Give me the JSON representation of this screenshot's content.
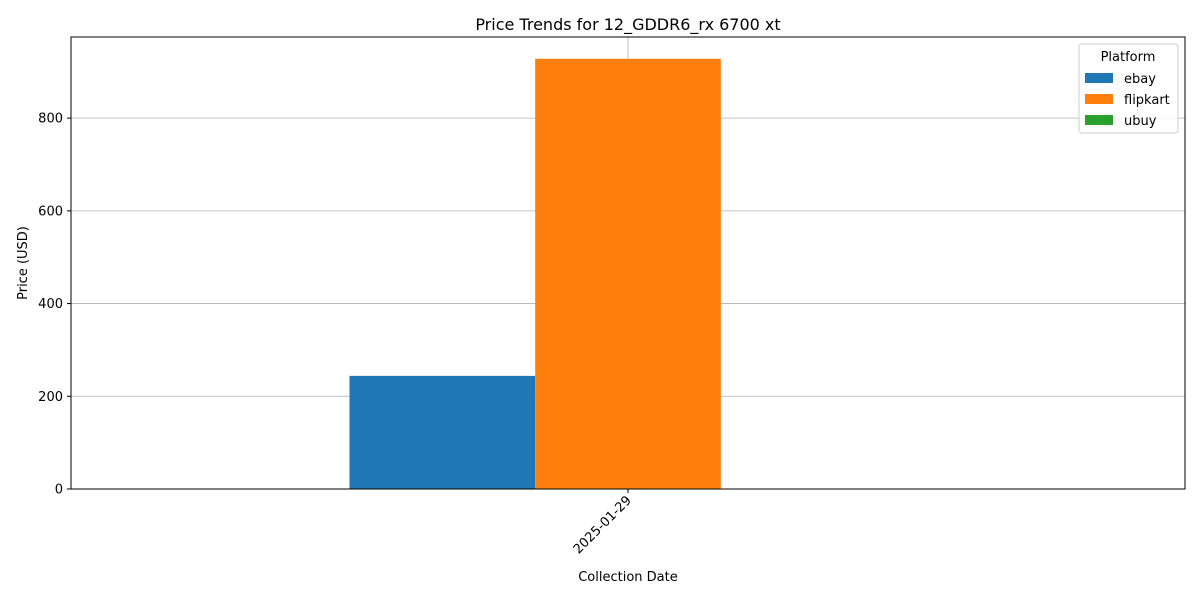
{
  "chart_data": {
    "type": "bar",
    "title": "Price Trends for 12_GDDR6_rx 6700 xt",
    "xlabel": "Collection Date",
    "ylabel": "Price (USD)",
    "categories": [
      "2025-01-29"
    ],
    "series": [
      {
        "name": "ebay",
        "values": [
          244
        ],
        "color": "#1f77b4"
      },
      {
        "name": "flipkart",
        "values": [
          928
        ],
        "color": "#ff7f0e"
      },
      {
        "name": "ubuy",
        "values": [
          0
        ],
        "color": "#2ca02c"
      }
    ],
    "ylim": [
      0,
      975
    ],
    "yticks": [
      0,
      200,
      400,
      600,
      800
    ],
    "grid": true,
    "legend": {
      "title": "Platform",
      "placement": "top-right"
    }
  }
}
